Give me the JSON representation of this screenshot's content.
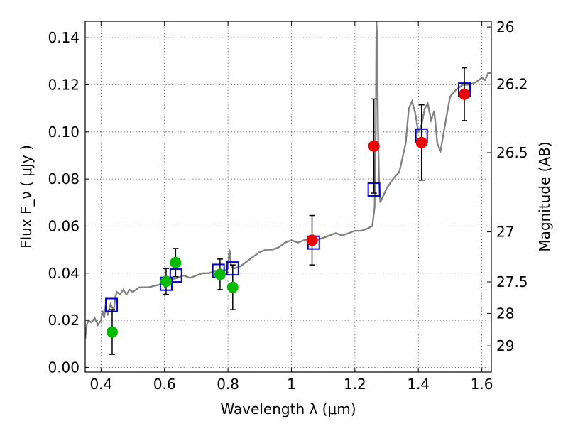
{
  "chart_data": {
    "type": "scatter",
    "xlabel": "Wavelength  λ (μm)",
    "ylabel": "Flux  F_ν  ( μJy )",
    "y2label": "Magnitude (AB)",
    "xlim": [
      0.35,
      1.63
    ],
    "ylim": [
      -0.002,
      0.147
    ],
    "grid": true,
    "x_ticks": [
      {
        "value": 0.4,
        "label": "0.4"
      },
      {
        "value": 0.6,
        "label": "0.6"
      },
      {
        "value": 0.8,
        "label": "0.8"
      },
      {
        "value": 1.0,
        "label": "1"
      },
      {
        "value": 1.2,
        "label": "1.2"
      },
      {
        "value": 1.4,
        "label": "1.4"
      },
      {
        "value": 1.6,
        "label": "1.6"
      }
    ],
    "y_ticks": [
      {
        "value": 0.0,
        "label": "0.00"
      },
      {
        "value": 0.02,
        "label": "0.02"
      },
      {
        "value": 0.04,
        "label": "0.04"
      },
      {
        "value": 0.06,
        "label": "0.06"
      },
      {
        "value": 0.08,
        "label": "0.08"
      },
      {
        "value": 0.1,
        "label": "0.10"
      },
      {
        "value": 0.12,
        "label": "0.12"
      },
      {
        "value": 0.14,
        "label": "0.14"
      }
    ],
    "y2_ticks": [
      {
        "value": 26,
        "label": "26"
      },
      {
        "value": 26.2,
        "label": "26.2"
      },
      {
        "value": 26.5,
        "label": "26.5"
      },
      {
        "value": 27,
        "label": "27"
      },
      {
        "value": 27.5,
        "label": "27.5"
      },
      {
        "value": 28,
        "label": "28"
      },
      {
        "value": 29,
        "label": "29"
      }
    ],
    "series": [
      {
        "style": "line",
        "color": "#808080",
        "points": [
          [
            0.35,
            0.012
          ],
          [
            0.355,
            0.018
          ],
          [
            0.36,
            0.02
          ],
          [
            0.37,
            0.019
          ],
          [
            0.38,
            0.021
          ],
          [
            0.39,
            0.018
          ],
          [
            0.4,
            0.02
          ],
          [
            0.405,
            0.024
          ],
          [
            0.41,
            0.021
          ],
          [
            0.415,
            0.027
          ],
          [
            0.42,
            0.022
          ],
          [
            0.43,
            0.027
          ],
          [
            0.44,
            0.024
          ],
          [
            0.445,
            0.03
          ],
          [
            0.45,
            0.032
          ],
          [
            0.46,
            0.031
          ],
          [
            0.47,
            0.033
          ],
          [
            0.48,
            0.031
          ],
          [
            0.49,
            0.033
          ],
          [
            0.5,
            0.032
          ],
          [
            0.52,
            0.034
          ],
          [
            0.55,
            0.034
          ],
          [
            0.58,
            0.035
          ],
          [
            0.6,
            0.036
          ],
          [
            0.62,
            0.037
          ],
          [
            0.64,
            0.038
          ],
          [
            0.66,
            0.039
          ],
          [
            0.68,
            0.038
          ],
          [
            0.7,
            0.039
          ],
          [
            0.72,
            0.04
          ],
          [
            0.74,
            0.04
          ],
          [
            0.76,
            0.041
          ],
          [
            0.78,
            0.04
          ],
          [
            0.8,
            0.042
          ],
          [
            0.805,
            0.05
          ],
          [
            0.81,
            0.043
          ],
          [
            0.82,
            0.042
          ],
          [
            0.84,
            0.043
          ],
          [
            0.86,
            0.045
          ],
          [
            0.88,
            0.047
          ],
          [
            0.9,
            0.049
          ],
          [
            0.92,
            0.05
          ],
          [
            0.94,
            0.05
          ],
          [
            0.96,
            0.051
          ],
          [
            0.98,
            0.053
          ],
          [
            1.0,
            0.054
          ],
          [
            1.02,
            0.053
          ],
          [
            1.04,
            0.054
          ],
          [
            1.06,
            0.055
          ],
          [
            1.08,
            0.054
          ],
          [
            1.1,
            0.055
          ],
          [
            1.12,
            0.056
          ],
          [
            1.14,
            0.057
          ],
          [
            1.16,
            0.056
          ],
          [
            1.18,
            0.057
          ],
          [
            1.2,
            0.058
          ],
          [
            1.22,
            0.058
          ],
          [
            1.24,
            0.059
          ],
          [
            1.255,
            0.06
          ],
          [
            1.262,
            0.068
          ],
          [
            1.266,
            0.1
          ],
          [
            1.268,
            0.147
          ],
          [
            1.27,
            0.14
          ],
          [
            1.273,
            0.1
          ],
          [
            1.276,
            0.08
          ],
          [
            1.28,
            0.07
          ],
          [
            1.3,
            0.076
          ],
          [
            1.32,
            0.08
          ],
          [
            1.34,
            0.083
          ],
          [
            1.36,
            0.095
          ],
          [
            1.37,
            0.11
          ],
          [
            1.38,
            0.113
          ],
          [
            1.39,
            0.108
          ],
          [
            1.4,
            0.1
          ],
          [
            1.41,
            0.103
          ],
          [
            1.42,
            0.11
          ],
          [
            1.43,
            0.112
          ],
          [
            1.44,
            0.105
          ],
          [
            1.45,
            0.109
          ],
          [
            1.46,
            0.095
          ],
          [
            1.47,
            0.092
          ],
          [
            1.48,
            0.1
          ],
          [
            1.5,
            0.115
          ],
          [
            1.52,
            0.118
          ],
          [
            1.54,
            0.12
          ],
          [
            1.56,
            0.12
          ],
          [
            1.58,
            0.121
          ],
          [
            1.6,
            0.123
          ],
          [
            1.61,
            0.122
          ],
          [
            1.62,
            0.125
          ],
          [
            1.63,
            0.125
          ]
        ]
      },
      {
        "style": "open-square",
        "color": "#0000cc",
        "points": [
          [
            0.433,
            0.0265
          ],
          [
            0.605,
            0.0355
          ],
          [
            0.636,
            0.039
          ],
          [
            0.77,
            0.041
          ],
          [
            0.815,
            0.042
          ],
          [
            1.07,
            0.053
          ],
          [
            1.26,
            0.0755
          ],
          [
            1.41,
            0.0985
          ],
          [
            1.545,
            0.118
          ]
        ]
      },
      {
        "style": "filled-circle",
        "color": "#00bb00",
        "points": [
          {
            "x": 0.435,
            "y": 0.015,
            "err": 0.0095
          },
          {
            "x": 0.605,
            "y": 0.0365,
            "err": 0.0055
          },
          {
            "x": 0.635,
            "y": 0.0445,
            "err": 0.006
          },
          {
            "x": 0.775,
            "y": 0.0395,
            "err": 0.0065
          },
          {
            "x": 0.815,
            "y": 0.034,
            "err": 0.0095
          }
        ]
      },
      {
        "style": "filled-circle",
        "color": "#ee0000",
        "points": [
          {
            "x": 1.065,
            "y": 0.054,
            "err": 0.0105
          },
          {
            "x": 1.26,
            "y": 0.094,
            "err": 0.02
          },
          {
            "x": 1.41,
            "y": 0.0955,
            "err": 0.016
          },
          {
            "x": 1.545,
            "y": 0.116,
            "err": 0.0112
          }
        ]
      }
    ]
  }
}
